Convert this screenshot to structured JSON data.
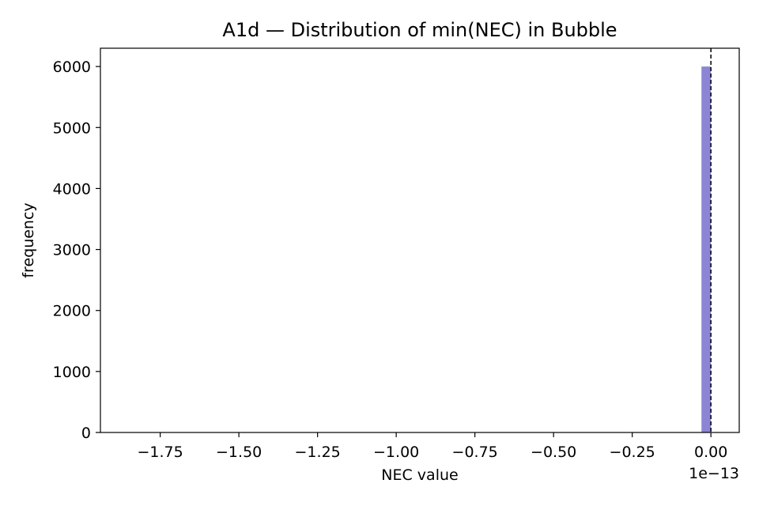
{
  "chart_data": {
    "type": "bar",
    "title": "A1d — Distribution of min(NEC) in Bubble",
    "xlabel": "NEC value",
    "ylabel": "frequency",
    "x_offset_label": "1e−13",
    "xlim": [
      -1.94,
      0.09
    ],
    "ylim": [
      0,
      6300
    ],
    "x_ticks": [
      -1.75,
      -1.5,
      -1.25,
      -1.0,
      -0.75,
      -0.5,
      -0.25,
      0.0
    ],
    "x_tick_labels": [
      "−1.75",
      "−1.50",
      "−1.25",
      "−1.00",
      "−0.75",
      "−0.50",
      "−0.25",
      "0.00"
    ],
    "y_ticks": [
      0,
      1000,
      2000,
      3000,
      4000,
      5000,
      6000
    ],
    "y_tick_labels": [
      "0",
      "1000",
      "2000",
      "3000",
      "4000",
      "5000",
      "6000"
    ],
    "bins": [
      {
        "x0": -0.03,
        "x1": 0.0,
        "count": 6000
      }
    ],
    "reference_line": {
      "x": 0.0,
      "style": "dashed"
    },
    "bar_color": "#8c85d4",
    "grid": false,
    "legend": "none"
  }
}
